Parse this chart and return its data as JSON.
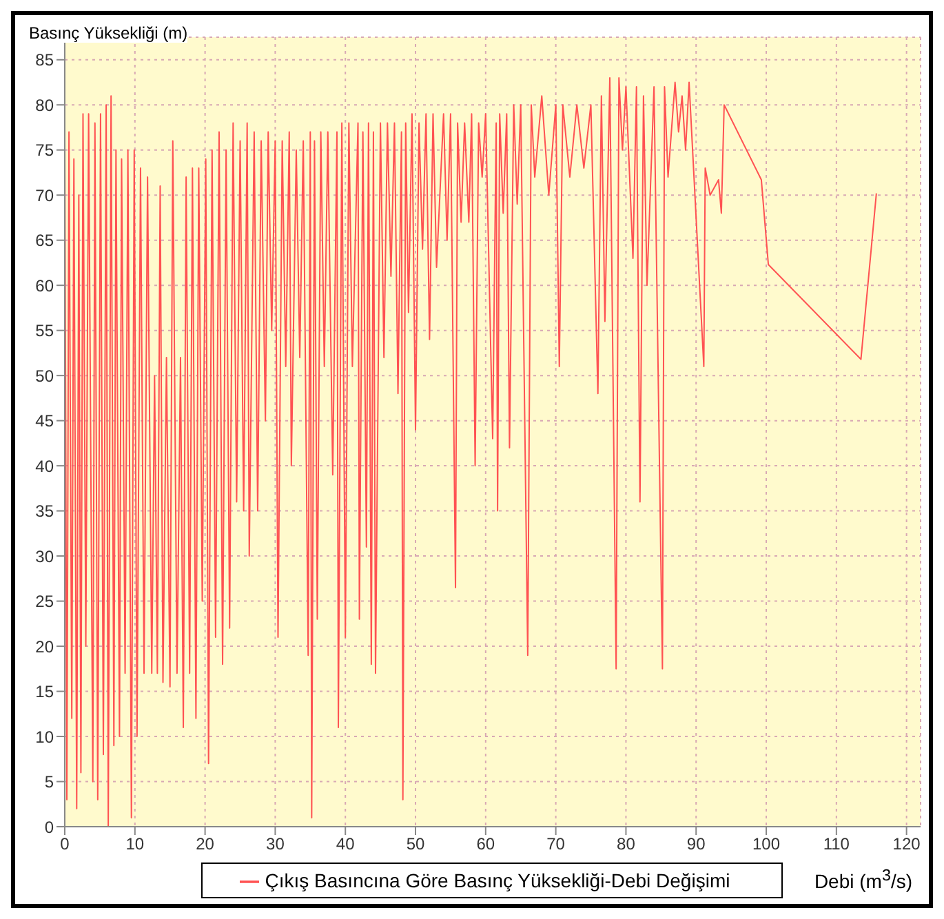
{
  "chart_data": {
    "type": "line",
    "xlabel": "Debi (m$^{3}$/s)",
    "ylabel": "Basınç Yüksekliği (m)",
    "x": [
      0,
      0.3,
      0.6,
      1,
      1.3,
      1.7,
      2,
      2.3,
      2.6,
      3,
      3.4,
      4,
      4.3,
      4.7,
      5.1,
      5.5,
      5.9,
      6.2,
      6.6,
      7,
      7.3,
      7.8,
      8.1,
      8.6,
      9,
      9.5,
      9.9,
      10.3,
      10.8,
      11.3,
      11.8,
      12.4,
      12.8,
      13.2,
      13.6,
      14,
      14.5,
      15,
      15.4,
      16,
      16.5,
      16.9,
      17.3,
      17.8,
      18.2,
      18.7,
      19.1,
      19.6,
      20.1,
      20.5,
      21,
      21.5,
      22,
      22.5,
      23,
      23.5,
      24,
      24.5,
      25,
      25.5,
      26,
      26.3,
      27,
      27.5,
      28,
      28.6,
      29,
      29.5,
      30,
      30.4,
      31,
      31.5,
      32,
      32.3,
      33,
      33.5,
      34,
      34.7,
      35,
      35.2,
      35.6,
      36,
      36.5,
      37,
      37.5,
      38.2,
      38.8,
      39,
      39.5,
      40,
      40.5,
      41,
      41.8,
      42,
      42.5,
      43,
      43.3,
      43.7,
      44,
      44.3,
      45,
      45.5,
      46,
      46.5,
      47,
      47.5,
      48,
      48.2,
      48.6,
      49,
      49.5,
      50,
      50.5,
      51,
      51.5,
      52,
      52.5,
      53,
      54,
      54.5,
      55,
      55.7,
      56,
      56.5,
      57,
      57.6,
      58,
      58.5,
      59,
      59.5,
      60,
      61,
      61.5,
      61.7,
      62,
      62.5,
      63,
      63.4,
      64,
      64.5,
      65,
      66,
      66.5,
      67,
      68,
      69,
      70,
      70.5,
      71,
      72,
      73,
      74,
      75,
      76,
      76.5,
      77,
      77.7,
      78.6,
      79,
      79.5,
      80,
      81,
      81.5,
      82,
      82.5,
      83,
      84,
      85.2,
      85.5,
      86,
      87,
      87.5,
      88,
      88.5,
      89,
      89.5,
      91.1,
      91.3,
      92,
      93.2,
      93.6,
      94,
      99.3,
      100.3,
      113.5,
      115.7
    ],
    "series": [
      {
        "name": "Çıkış Basıncına Göre Basınç Yüksekliği-Debi Değişimi",
        "color": "#ff5252",
        "values": [
          76,
          3,
          77,
          12,
          74,
          2,
          70,
          6,
          79,
          20,
          79,
          5,
          78,
          3,
          79,
          8,
          80,
          0,
          81,
          9,
          75,
          10,
          74,
          17,
          75,
          1,
          75,
          10,
          73,
          17,
          72,
          17,
          50,
          17,
          71,
          16,
          52,
          15.5,
          76,
          17,
          52,
          11,
          72,
          17,
          73,
          12,
          73,
          25,
          74,
          7,
          75,
          21,
          77,
          18,
          75,
          22,
          78,
          36,
          76,
          35,
          78,
          30,
          77,
          35,
          76,
          45,
          77,
          55,
          76,
          21,
          76,
          51,
          77,
          40,
          75,
          52,
          76,
          19,
          77,
          1,
          76,
          23,
          77,
          51,
          77,
          39,
          77,
          11,
          78,
          21,
          78,
          51,
          78,
          23,
          77,
          31,
          78,
          18,
          77,
          17,
          78,
          52,
          78,
          61,
          78,
          48,
          77,
          3,
          78,
          57,
          79,
          44,
          78,
          64,
          79,
          54,
          79,
          62,
          79,
          65,
          79,
          26.5,
          78,
          67,
          78,
          67,
          79,
          40,
          78,
          72,
          79,
          43,
          78,
          35,
          79,
          68,
          79,
          42,
          80,
          69,
          80,
          19,
          80,
          72,
          81,
          70,
          80,
          51,
          80,
          72,
          80,
          73,
          80,
          48,
          81,
          56,
          83,
          17.5,
          83,
          75,
          82,
          63,
          82,
          36,
          81,
          60,
          82,
          17.5,
          82,
          72,
          82.5,
          77,
          81,
          75,
          82.5,
          75,
          51,
          73,
          70,
          71.7,
          68,
          80,
          71.7,
          62.3,
          51.8,
          70.2
        ]
      }
    ],
    "xlim": [
      0,
      122
    ],
    "ylim": [
      0,
      87.5
    ],
    "xticks": [
      0,
      10,
      20,
      30,
      40,
      50,
      60,
      70,
      80,
      90,
      100,
      110,
      120
    ],
    "yticks": [
      0,
      5,
      10,
      15,
      20,
      25,
      30,
      35,
      40,
      45,
      50,
      55,
      60,
      65,
      70,
      75,
      80,
      85
    ],
    "grid": true,
    "legend": "bottom",
    "marker": "none",
    "line_style": "solid"
  }
}
